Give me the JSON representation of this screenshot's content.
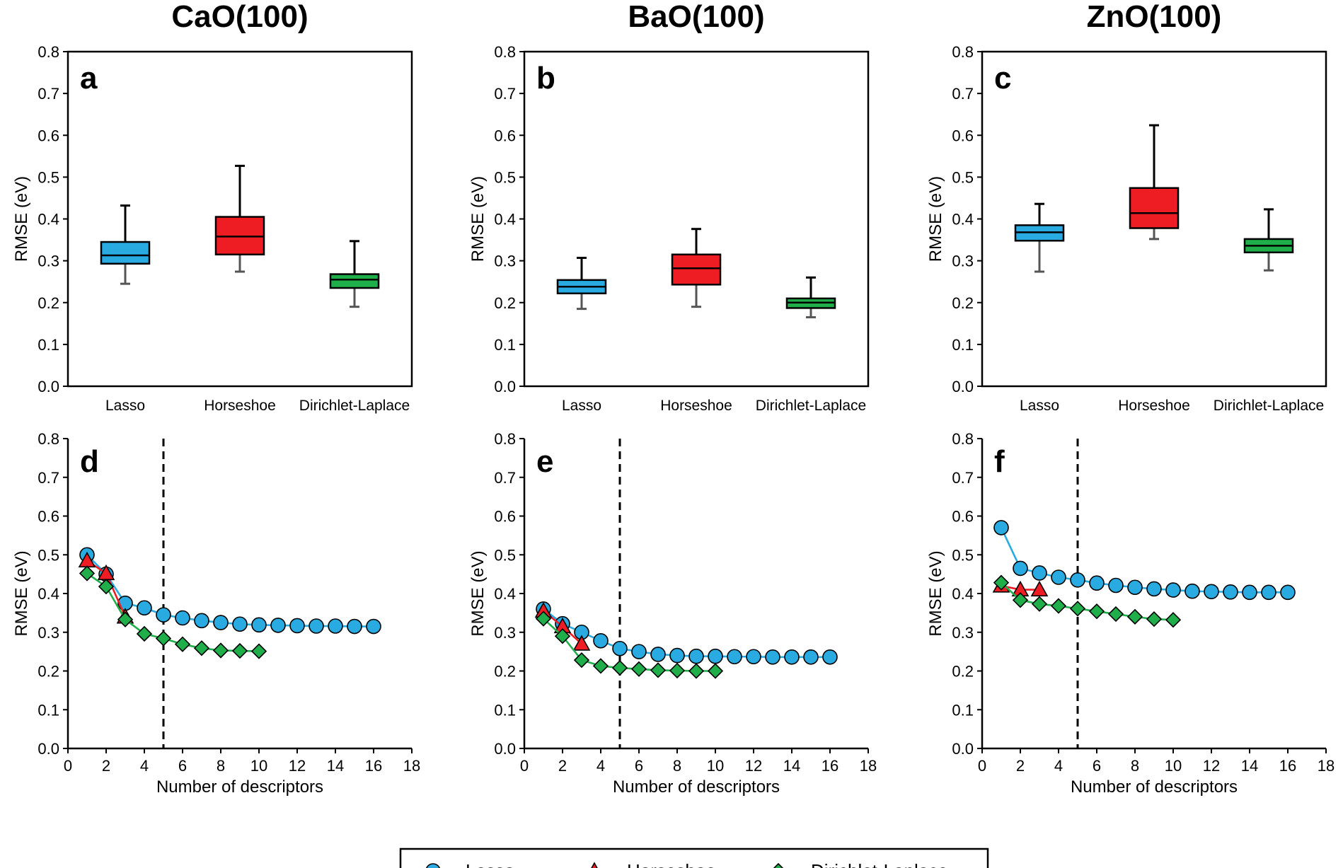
{
  "colors": {
    "lasso": "#29abe2",
    "horseshoe": "#ee1c23",
    "dirichlet": "#1fae4a",
    "axis": "#000000"
  },
  "legend": {
    "items": [
      {
        "key": "lasso",
        "label": "Lasso",
        "marker": "circle"
      },
      {
        "key": "horseshoe",
        "label": "Horseshoe",
        "marker": "triangle"
      },
      {
        "key": "dirichlet",
        "label": "Dirichlet-Laplace",
        "marker": "diamond"
      }
    ]
  },
  "chart_data": [
    {
      "panel": "a",
      "column_title": "CaO(100)",
      "type": "box",
      "ylabel": "RMSE (eV)",
      "ylim": [
        0,
        0.8
      ],
      "yticks": [
        "0.0",
        "0.1",
        "0.2",
        "0.3",
        "0.4",
        "0.5",
        "0.6",
        "0.7",
        "0.8"
      ],
      "categories": [
        "Lasso",
        "Horseshoe",
        "Dirichlet-Laplace"
      ],
      "boxes": [
        {
          "name": "Lasso",
          "color_key": "lasso",
          "min": 0.245,
          "q1": 0.293,
          "median": 0.313,
          "q3": 0.345,
          "max": 0.432
        },
        {
          "name": "Horseshoe",
          "color_key": "horseshoe",
          "min": 0.274,
          "q1": 0.315,
          "median": 0.358,
          "q3": 0.405,
          "max": 0.527
        },
        {
          "name": "Dirichlet-Laplace",
          "color_key": "dirichlet",
          "min": 0.19,
          "q1": 0.235,
          "median": 0.255,
          "q3": 0.268,
          "max": 0.347
        }
      ]
    },
    {
      "panel": "b",
      "column_title": "BaO(100)",
      "type": "box",
      "ylabel": "RMSE (eV)",
      "ylim": [
        0,
        0.8
      ],
      "yticks": [
        "0.0",
        "0.1",
        "0.2",
        "0.3",
        "0.4",
        "0.5",
        "0.6",
        "0.7",
        "0.8"
      ],
      "categories": [
        "Lasso",
        "Horseshoe",
        "Dirichlet-Laplace"
      ],
      "boxes": [
        {
          "name": "Lasso",
          "color_key": "lasso",
          "min": 0.185,
          "q1": 0.222,
          "median": 0.238,
          "q3": 0.254,
          "max": 0.307
        },
        {
          "name": "Horseshoe",
          "color_key": "horseshoe",
          "min": 0.19,
          "q1": 0.243,
          "median": 0.282,
          "q3": 0.315,
          "max": 0.376
        },
        {
          "name": "Dirichlet-Laplace",
          "color_key": "dirichlet",
          "min": 0.165,
          "q1": 0.187,
          "median": 0.2,
          "q3": 0.21,
          "max": 0.26
        }
      ]
    },
    {
      "panel": "c",
      "column_title": "ZnO(100)",
      "type": "box",
      "ylabel": "RMSE (eV)",
      "ylim": [
        0,
        0.8
      ],
      "yticks": [
        "0.0",
        "0.1",
        "0.2",
        "0.3",
        "0.4",
        "0.5",
        "0.6",
        "0.7",
        "0.8"
      ],
      "categories": [
        "Lasso",
        "Horseshoe",
        "Dirichlet-Laplace"
      ],
      "boxes": [
        {
          "name": "Lasso",
          "color_key": "lasso",
          "min": 0.274,
          "q1": 0.348,
          "median": 0.368,
          "q3": 0.385,
          "max": 0.436
        },
        {
          "name": "Horseshoe",
          "color_key": "horseshoe",
          "min": 0.352,
          "q1": 0.378,
          "median": 0.414,
          "q3": 0.474,
          "max": 0.624
        },
        {
          "name": "Dirichlet-Laplace",
          "color_key": "dirichlet",
          "min": 0.277,
          "q1": 0.32,
          "median": 0.336,
          "q3": 0.352,
          "max": 0.423
        }
      ]
    },
    {
      "panel": "d",
      "type": "line",
      "xlabel": "Number of descriptors",
      "ylabel": "RMSE (eV)",
      "xlim": [
        0,
        18
      ],
      "ylim": [
        0,
        0.8
      ],
      "xticks": [
        "0",
        "2",
        "4",
        "6",
        "8",
        "10",
        "12",
        "14",
        "16",
        "18"
      ],
      "yticks": [
        "0.0",
        "0.1",
        "0.2",
        "0.3",
        "0.4",
        "0.5",
        "0.6",
        "0.7",
        "0.8"
      ],
      "vline_x": 5,
      "series": [
        {
          "name": "Lasso",
          "color_key": "lasso",
          "marker": "circle",
          "x": [
            1,
            2,
            3,
            4,
            5,
            6,
            7,
            8,
            9,
            10,
            11,
            12,
            13,
            14,
            15,
            16
          ],
          "y": [
            0.5,
            0.45,
            0.375,
            0.363,
            0.345,
            0.337,
            0.33,
            0.325,
            0.321,
            0.319,
            0.318,
            0.317,
            0.316,
            0.316,
            0.315,
            0.315
          ]
        },
        {
          "name": "Horseshoe",
          "color_key": "horseshoe",
          "marker": "triangle",
          "x": [
            1,
            2,
            3
          ],
          "y": [
            0.485,
            0.452,
            0.34
          ]
        },
        {
          "name": "Dirichlet-Laplace",
          "color_key": "dirichlet",
          "marker": "diamond",
          "x": [
            1,
            2,
            3,
            4,
            5,
            6,
            7,
            8,
            9,
            10
          ],
          "y": [
            0.452,
            0.418,
            0.333,
            0.296,
            0.284,
            0.269,
            0.259,
            0.253,
            0.252,
            0.251
          ]
        }
      ]
    },
    {
      "panel": "e",
      "type": "line",
      "xlabel": "Number of descriptors",
      "ylabel": "RMSE (eV)",
      "xlim": [
        0,
        18
      ],
      "ylim": [
        0,
        0.8
      ],
      "xticks": [
        "0",
        "2",
        "4",
        "6",
        "8",
        "10",
        "12",
        "14",
        "16",
        "18"
      ],
      "yticks": [
        "0.0",
        "0.1",
        "0.2",
        "0.3",
        "0.4",
        "0.5",
        "0.6",
        "0.7",
        "0.8"
      ],
      "vline_x": 5,
      "series": [
        {
          "name": "Lasso",
          "color_key": "lasso",
          "marker": "circle",
          "x": [
            1,
            2,
            3,
            4,
            5,
            6,
            7,
            8,
            9,
            10,
            11,
            12,
            13,
            14,
            15,
            16
          ],
          "y": [
            0.36,
            0.322,
            0.3,
            0.278,
            0.258,
            0.25,
            0.243,
            0.24,
            0.238,
            0.238,
            0.237,
            0.237,
            0.236,
            0.236,
            0.236,
            0.236
          ]
        },
        {
          "name": "Horseshoe",
          "color_key": "horseshoe",
          "marker": "triangle",
          "x": [
            1,
            2,
            3
          ],
          "y": [
            0.355,
            0.315,
            0.27
          ]
        },
        {
          "name": "Dirichlet-Laplace",
          "color_key": "dirichlet",
          "marker": "diamond",
          "x": [
            1,
            2,
            3,
            4,
            5,
            6,
            7,
            8,
            9,
            10
          ],
          "y": [
            0.335,
            0.29,
            0.228,
            0.213,
            0.208,
            0.205,
            0.202,
            0.201,
            0.2,
            0.2
          ]
        }
      ]
    },
    {
      "panel": "f",
      "type": "line",
      "xlabel": "Number of descriptors",
      "ylabel": "RMSE (eV)",
      "xlim": [
        0,
        18
      ],
      "ylim": [
        0,
        0.8
      ],
      "xticks": [
        "0",
        "2",
        "4",
        "6",
        "8",
        "10",
        "12",
        "14",
        "16",
        "18"
      ],
      "yticks": [
        "0.0",
        "0.1",
        "0.2",
        "0.3",
        "0.4",
        "0.5",
        "0.6",
        "0.7",
        "0.8"
      ],
      "vline_x": 5,
      "series": [
        {
          "name": "Lasso",
          "color_key": "lasso",
          "marker": "circle",
          "x": [
            1,
            2,
            3,
            4,
            5,
            6,
            7,
            8,
            9,
            10,
            11,
            12,
            13,
            14,
            15,
            16
          ],
          "y": [
            0.57,
            0.465,
            0.453,
            0.442,
            0.435,
            0.427,
            0.421,
            0.416,
            0.412,
            0.409,
            0.406,
            0.405,
            0.404,
            0.403,
            0.403,
            0.403
          ]
        },
        {
          "name": "Horseshoe",
          "color_key": "horseshoe",
          "marker": "triangle",
          "x": [
            1,
            2,
            3
          ],
          "y": [
            0.42,
            0.41,
            0.41
          ]
        },
        {
          "name": "Dirichlet-Laplace",
          "color_key": "dirichlet",
          "marker": "diamond",
          "x": [
            1,
            2,
            3,
            4,
            5,
            6,
            7,
            8,
            9,
            10
          ],
          "y": [
            0.428,
            0.383,
            0.373,
            0.368,
            0.361,
            0.354,
            0.347,
            0.34,
            0.334,
            0.332
          ]
        }
      ]
    }
  ]
}
